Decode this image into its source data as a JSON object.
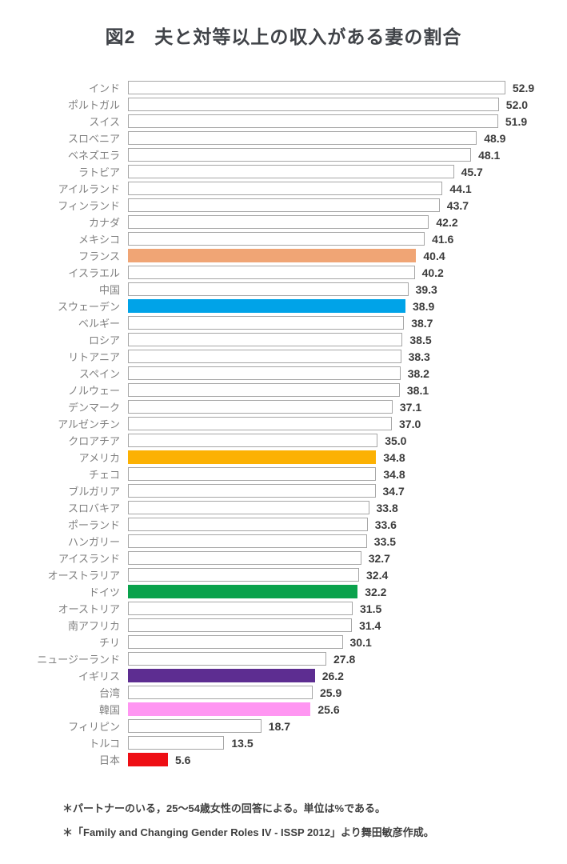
{
  "page": {
    "title": "図2　夫と対等以上の収入がある妻の割合"
  },
  "footnotes": [
    "＊パートナーのいる，25～54歳女性の回答による。単位は%である。",
    "＊「Family and Changing Gender Roles IV - ISSP 2012」より舞田敏彦作成。"
  ],
  "style_colors": {
    "default_bar_fill": "#ffffff",
    "default_bar_border": "#a6a6a6",
    "country_label": "#7f7f7f",
    "value_label": "#3b3b3b",
    "title_text": "#404348"
  },
  "chart_data": {
    "type": "bar",
    "orientation": "horizontal",
    "title": "図2　夫と対等以上の収入がある妻の割合",
    "unit": "%",
    "xlim": [
      0,
      55
    ],
    "value_precision": 1,
    "grid": false,
    "legend": false,
    "series": [
      {
        "label": "インド",
        "value": 52.9,
        "color": null
      },
      {
        "label": "ポルトガル",
        "value": 52.0,
        "color": null
      },
      {
        "label": "スイス",
        "value": 51.9,
        "color": null
      },
      {
        "label": "スロベニア",
        "value": 48.9,
        "color": null
      },
      {
        "label": "ベネズエラ",
        "value": 48.1,
        "color": null
      },
      {
        "label": "ラトビア",
        "value": 45.7,
        "color": null
      },
      {
        "label": "アイルランド",
        "value": 44.1,
        "color": null
      },
      {
        "label": "フィンランド",
        "value": 43.7,
        "color": null
      },
      {
        "label": "カナダ",
        "value": 42.2,
        "color": null
      },
      {
        "label": "メキシコ",
        "value": 41.6,
        "color": null
      },
      {
        "label": "フランス",
        "value": 40.4,
        "color": "#f0a575"
      },
      {
        "label": "イスラエル",
        "value": 40.2,
        "color": null
      },
      {
        "label": "中国",
        "value": 39.3,
        "color": null
      },
      {
        "label": "スウェーデン",
        "value": 38.9,
        "color": "#00a3e8"
      },
      {
        "label": "ベルギー",
        "value": 38.7,
        "color": null
      },
      {
        "label": "ロシア",
        "value": 38.5,
        "color": null
      },
      {
        "label": "リトアニア",
        "value": 38.3,
        "color": null
      },
      {
        "label": "スペイン",
        "value": 38.2,
        "color": null
      },
      {
        "label": "ノルウェー",
        "value": 38.1,
        "color": null
      },
      {
        "label": "デンマーク",
        "value": 37.1,
        "color": null
      },
      {
        "label": "アルゼンチン",
        "value": 37.0,
        "color": null
      },
      {
        "label": "クロアチア",
        "value": 35.0,
        "color": null
      },
      {
        "label": "アメリカ",
        "value": 34.8,
        "color": "#fcb103"
      },
      {
        "label": "チェコ",
        "value": 34.8,
        "color": null
      },
      {
        "label": "ブルガリア",
        "value": 34.7,
        "color": null
      },
      {
        "label": "スロバキア",
        "value": 33.8,
        "color": null
      },
      {
        "label": "ポーランド",
        "value": 33.6,
        "color": null
      },
      {
        "label": "ハンガリー",
        "value": 33.5,
        "color": null
      },
      {
        "label": "アイスランド",
        "value": 32.7,
        "color": null
      },
      {
        "label": "オーストラリア",
        "value": 32.4,
        "color": null
      },
      {
        "label": "ドイツ",
        "value": 32.2,
        "color": "#0aa24c"
      },
      {
        "label": "オーストリア",
        "value": 31.5,
        "color": null
      },
      {
        "label": "南アフリカ",
        "value": 31.4,
        "color": null
      },
      {
        "label": "チリ",
        "value": 30.1,
        "color": null
      },
      {
        "label": "ニュージーランド",
        "value": 27.8,
        "color": null
      },
      {
        "label": "イギリス",
        "value": 26.2,
        "color": "#5d2d91"
      },
      {
        "label": "台湾",
        "value": 25.9,
        "color": null
      },
      {
        "label": "韓国",
        "value": 25.6,
        "color": "#ff96f2"
      },
      {
        "label": "フィリピン",
        "value": 18.7,
        "color": null
      },
      {
        "label": "トルコ",
        "value": 13.5,
        "color": null
      },
      {
        "label": "日本",
        "value": 5.6,
        "color": "#ee0e14"
      }
    ]
  }
}
